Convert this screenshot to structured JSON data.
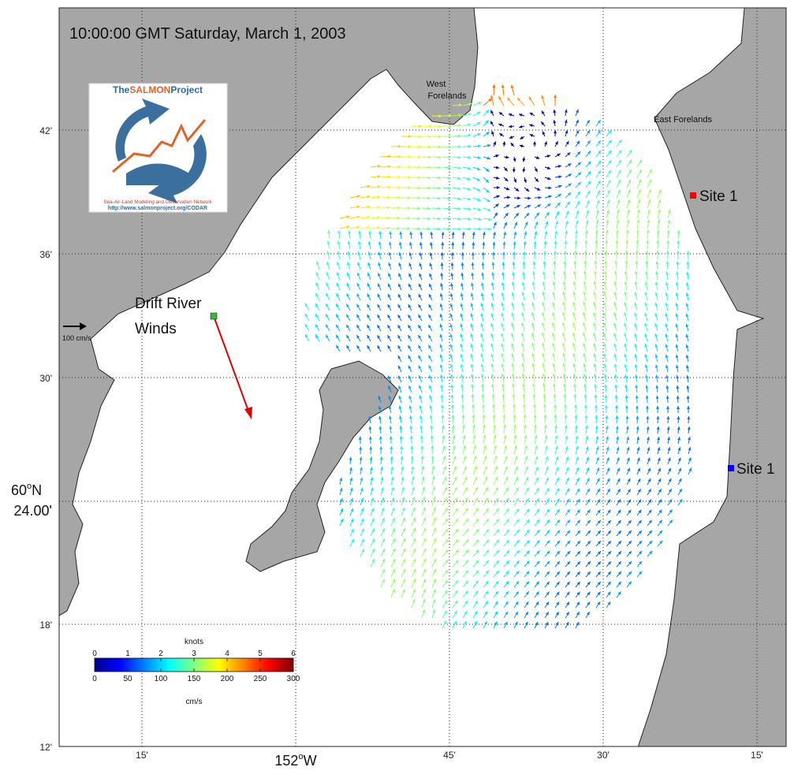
{
  "header": {
    "title": "10:00:00 GMT Saturday, March 1, 2003"
  },
  "logo": {
    "name_prefix": "The",
    "name_main": "SALMON",
    "name_suffix": "Project",
    "network": "Sea-Air-Land Modeling and Observation Network",
    "url": "http://www.salmonproject.org/CODAR"
  },
  "places": {
    "west_forelands_1": "West",
    "west_forelands_2": "Forelands",
    "east_forelands": "East Forelands",
    "site_north": "Site 1",
    "site_south": "Site 1",
    "drift_river_1": "Drift River",
    "drift_river_2": "Winds"
  },
  "scale_label": "100 cm/s",
  "lat_labels": {
    "l42": "42'",
    "l36": "36'",
    "l30": "30'",
    "l60n": "60",
    "l60n_deg": "o",
    "l60n_n": "N",
    "l24": "24.00'",
    "l18": "18'",
    "l12": "12'"
  },
  "lon_labels": {
    "w15a": "15'",
    "w152": "152",
    "w152_deg": "o",
    "w152_w": "W",
    "w45": "45'",
    "w30": "30'",
    "w15b": "15'"
  },
  "colorbar": {
    "top_title": "knots",
    "top_lim": [
      0,
      6
    ],
    "top_ticks": [
      0,
      1,
      2,
      3,
      4,
      5,
      6
    ],
    "bottom_lim": [
      0,
      300
    ],
    "bottom_ticks": [
      0,
      50,
      100,
      150,
      200,
      250,
      300
    ],
    "bottom_title": "cm/s"
  }
}
